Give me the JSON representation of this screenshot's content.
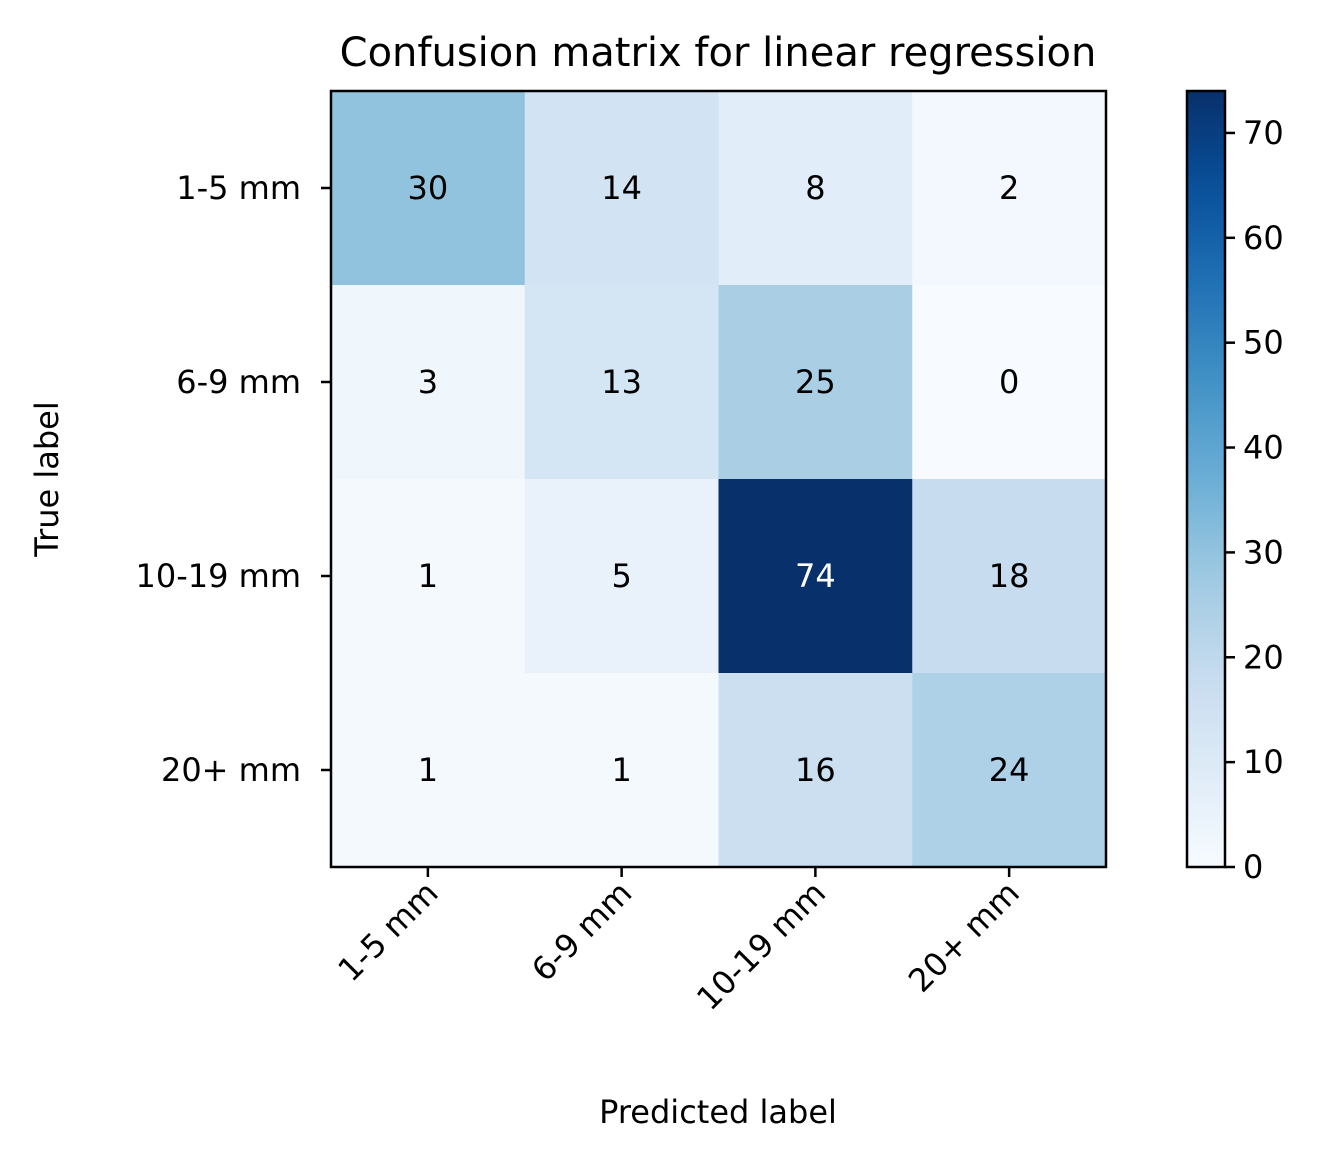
{
  "chart_data": {
    "type": "heatmap",
    "title": "Confusion matrix for linear regression",
    "xlabel": "Predicted label",
    "ylabel": "True label",
    "x_categories": [
      "1-5 mm",
      "6-9 mm",
      "10-19 mm",
      "20+ mm"
    ],
    "y_categories": [
      "1-5 mm",
      "6-9 mm",
      "10-19 mm",
      "20+ mm"
    ],
    "matrix": [
      [
        30,
        14,
        8,
        2
      ],
      [
        3,
        13,
        25,
        0
      ],
      [
        1,
        5,
        74,
        18
      ],
      [
        1,
        1,
        16,
        24
      ]
    ],
    "colormap": "Blues",
    "colorbar": {
      "range": [
        0,
        74
      ],
      "ticks": [
        0,
        10,
        20,
        30,
        40,
        50,
        60,
        70
      ]
    },
    "grid": false
  }
}
